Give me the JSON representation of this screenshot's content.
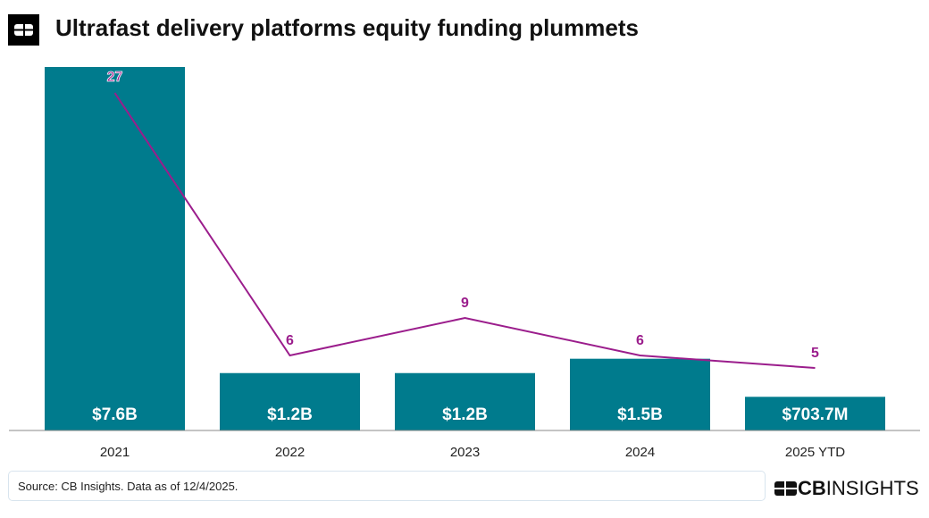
{
  "title": "Ultrafast delivery platforms equity funding plummets",
  "source": "Source: CB Insights. Data as of 12/4/2025.",
  "brand": {
    "bold": "CB",
    "light": "INSIGHTS"
  },
  "colors": {
    "bar": "#007b8d",
    "line": "#9b1d8c"
  },
  "chart_data": {
    "type": "bar",
    "categories": [
      "2021",
      "2022",
      "2023",
      "2024",
      "2025 YTD"
    ],
    "series": [
      {
        "type": "bar",
        "values": [
          7.6,
          1.2,
          1.2,
          1.5,
          0.7037
        ],
        "labels": [
          "$7.6B",
          "$1.2B",
          "$1.2B",
          "$1.5B",
          "$703.7M"
        ]
      },
      {
        "type": "line",
        "values": [
          27,
          6,
          9,
          6,
          5
        ],
        "labels": [
          "27",
          "6",
          "9",
          "6",
          "5"
        ]
      }
    ],
    "title": "Ultrafast delivery platforms equity funding plummets",
    "grid": false
  }
}
